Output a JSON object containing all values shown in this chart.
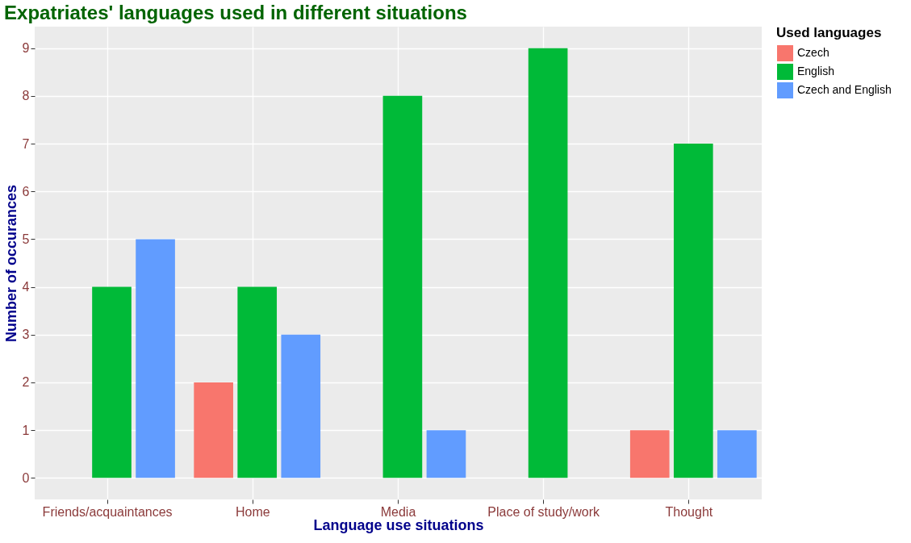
{
  "chart_data": {
    "type": "bar",
    "title": "Expatriates' languages used in different situations",
    "xlabel": "Language use situations",
    "ylabel": "Number of occurances",
    "legend_title": "Used languages",
    "categories": [
      "Friends/acquaintances",
      "Home",
      "Media",
      "Place of study/work",
      "Thought"
    ],
    "series": [
      {
        "name": "Czech",
        "color": "#f8766d",
        "values": [
          null,
          2,
          null,
          null,
          1
        ]
      },
      {
        "name": "English",
        "color": "#00ba38",
        "values": [
          4,
          4,
          8,
          9,
          7
        ]
      },
      {
        "name": "Czech and English",
        "color": "#619cff",
        "values": [
          5,
          3,
          1,
          null,
          1
        ]
      }
    ],
    "ylim": [
      -0.45,
      9.45
    ],
    "yticks": [
      0,
      1,
      2,
      3,
      4,
      5,
      6,
      7,
      8,
      9
    ],
    "grid": true,
    "legend": "right"
  }
}
